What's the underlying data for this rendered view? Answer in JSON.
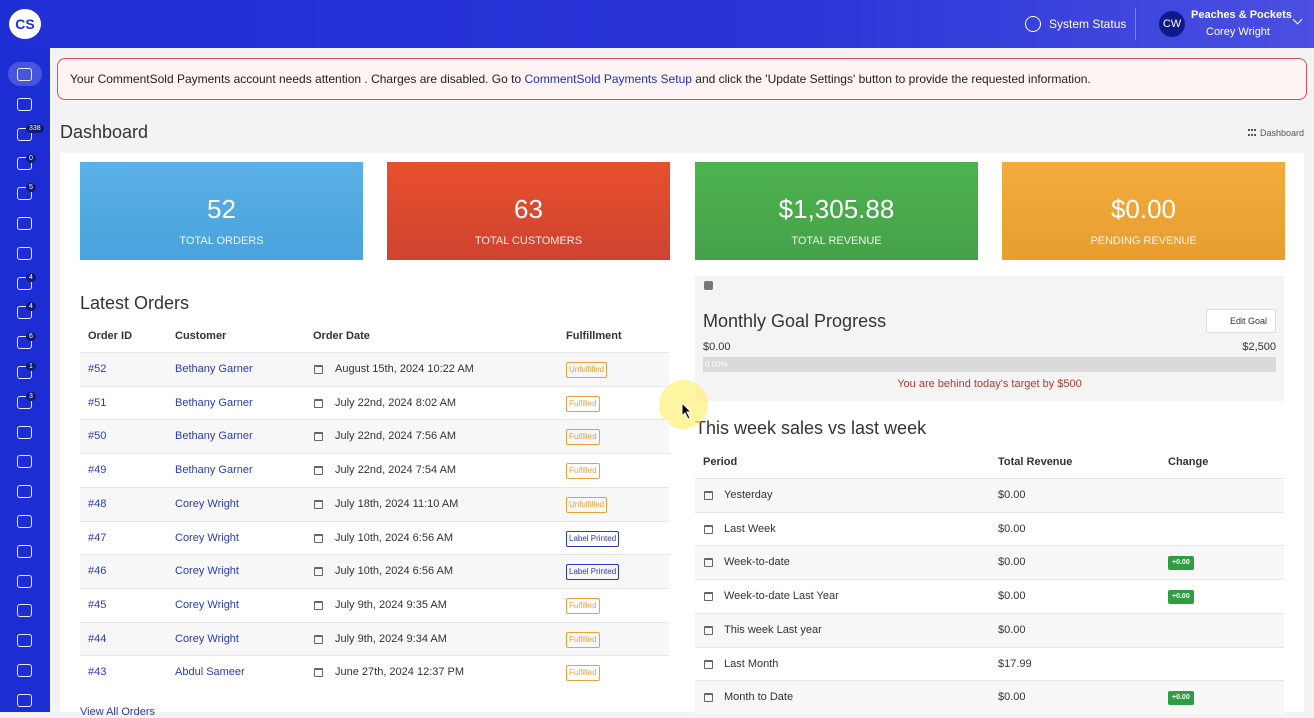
{
  "header": {
    "logo": "CS",
    "system_status": "System Status",
    "store": "Peaches & Pockets",
    "user": "Corey Wright",
    "avatar": "CW"
  },
  "sidebar": {
    "badges": [
      "338",
      "0",
      "5",
      "4",
      "4",
      "6",
      "1",
      "3"
    ]
  },
  "alert": {
    "text_before": "Your CommentSold Payments account needs attention . Charges are disabled. Go to",
    "link": "CommentSold Payments Setup",
    "text_after": "and click the 'Update Settings' button to provide the requested information."
  },
  "page": {
    "title": "Dashboard",
    "breadcrumb": "Dashboard"
  },
  "stats": [
    {
      "value": "52",
      "label": "TOTAL ORDERS"
    },
    {
      "value": "63",
      "label": "TOTAL CUSTOMERS"
    },
    {
      "value": "$1,305.88",
      "label": "TOTAL REVENUE"
    },
    {
      "value": "$0.00",
      "label": "PENDING REVENUE"
    }
  ],
  "latest_orders": {
    "title": "Latest Orders",
    "columns": [
      "Order ID",
      "Customer",
      "Order Date",
      "Fulfillment"
    ],
    "rows": [
      [
        "#52",
        "Bethany Garner",
        "August 15th, 2024 10:22 AM",
        "Unfulfilled"
      ],
      [
        "#51",
        "Bethany Garner",
        "July 22nd, 2024 8:02 AM",
        "Fulfilled"
      ],
      [
        "#50",
        "Bethany Garner",
        "July 22nd, 2024 7:56 AM",
        "Fulfilled"
      ],
      [
        "#49",
        "Bethany Garner",
        "July 22nd, 2024 7:54 AM",
        "Fulfilled"
      ],
      [
        "#48",
        "Corey Wright",
        "July 18th, 2024 11:10 AM",
        "Unfulfilled"
      ],
      [
        "#47",
        "Corey Wright",
        "July 10th, 2024 6:56 AM",
        "Label Printed"
      ],
      [
        "#46",
        "Corey Wright",
        "July 10th, 2024 6:56 AM",
        "Label Printed"
      ],
      [
        "#45",
        "Corey Wright",
        "July 9th, 2024 9:35 AM",
        "Fulfilled"
      ],
      [
        "#44",
        "Corey Wright",
        "July 9th, 2024 9:34 AM",
        "Fulfilled"
      ],
      [
        "#43",
        "Abdul Sameer",
        "June 27th, 2024 12:37 PM",
        "Fulfilled"
      ]
    ],
    "footer": "View All Orders"
  },
  "goal": {
    "title": "Monthly Goal Progress",
    "edit": "Edit Goal",
    "min": "$0.00",
    "max": "$2,500",
    "progress": "0.00%",
    "message": "You are behind today's target by",
    "amount": "$500"
  },
  "weekly": {
    "title": "This week sales vs last week",
    "columns": [
      "Period",
      "Total Revenue",
      "Change"
    ],
    "rows": [
      [
        "Yesterday",
        "$0.00",
        null
      ],
      [
        "Last Week",
        "$0.00",
        null
      ],
      [
        "Week-to-date",
        "$0.00",
        "+0.00"
      ],
      [
        "Week-to-date Last Year",
        "$0.00",
        "+0.00"
      ],
      [
        "This week Last year",
        "$0.00",
        null
      ],
      [
        "Last Month",
        "$17.99",
        null
      ],
      [
        "Month to Date",
        "$0.00",
        "+0.00"
      ]
    ]
  }
}
